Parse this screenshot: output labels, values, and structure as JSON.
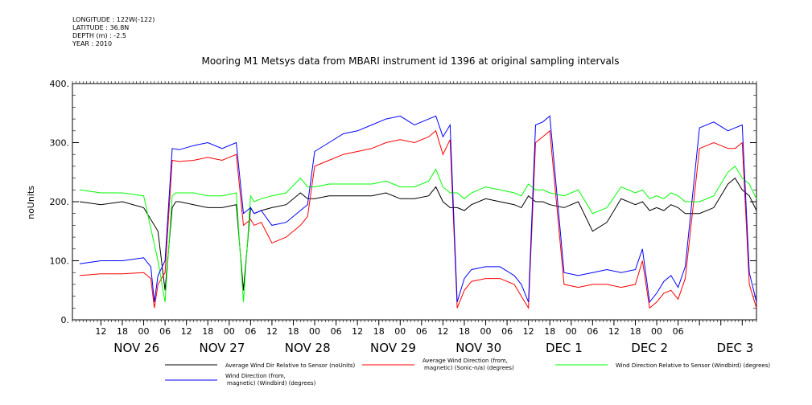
{
  "header": {
    "longitude": "LONGITUDE : 122W(-122)",
    "latitude": "LATITUDE : 36.8N",
    "depth": "DEPTH (m) : -2.5",
    "year": "YEAR : 2010"
  },
  "chart_data": {
    "type": "line",
    "title": "Mooring M1 Metsys data from MBARI instrument id 1396 at original sampling intervals",
    "ylabel": "noUnits",
    "ylim": [
      0,
      400
    ],
    "yticks": [
      "0.",
      "100.",
      "200.",
      "300.",
      "400."
    ],
    "xlim_hours": [
      -20,
      172
    ],
    "hour_tick_labels": [
      "12",
      "18",
      "00",
      "06",
      "12",
      "18",
      "00",
      "06",
      "12",
      "18",
      "00",
      "06",
      "12",
      "18",
      "00",
      "06",
      "12",
      "18",
      "00",
      "06",
      "12",
      "18",
      "00",
      "06",
      "12",
      "18",
      "00",
      "06"
    ],
    "day_labels": [
      "NOV 26",
      "NOV 27",
      "NOV 28",
      "NOV 29",
      "NOV 30",
      "DEC  1",
      "DEC  2",
      "DEC  3"
    ],
    "x_note": "x values are hours since 2010-11-26 00:00",
    "series": [
      {
        "name": "Average Wind Dir Relative to Sensor (noUnits)",
        "color": "#000000",
        "x": [
          -18,
          -12,
          -6,
          0,
          4,
          6,
          8,
          9,
          10,
          14,
          18,
          22,
          26,
          28,
          30,
          31,
          33,
          36,
          40,
          44,
          46,
          48,
          52,
          56,
          60,
          64,
          68,
          72,
          76,
          80,
          82,
          84,
          86,
          88,
          90,
          92,
          96,
          100,
          104,
          106,
          108,
          110,
          112,
          114,
          118,
          122,
          126,
          130,
          134,
          138,
          140,
          142,
          144,
          146,
          148,
          150,
          152,
          156,
          160,
          164,
          166,
          168,
          170,
          172
        ],
        "y": [
          200,
          195,
          200,
          190,
          150,
          50,
          190,
          200,
          200,
          195,
          190,
          190,
          195,
          50,
          190,
          180,
          185,
          190,
          195,
          215,
          205,
          205,
          210,
          210,
          210,
          210,
          215,
          205,
          205,
          210,
          225,
          200,
          190,
          190,
          185,
          195,
          205,
          200,
          195,
          190,
          210,
          200,
          200,
          195,
          190,
          200,
          150,
          165,
          205,
          195,
          200,
          185,
          190,
          185,
          195,
          190,
          180,
          180,
          190,
          230,
          240,
          220,
          210,
          185
        ]
      },
      {
        "name": "Average Wind Direction (from, magnetic) (Sonic-n/a) (degrees)",
        "color": "#ff0000",
        "x": [
          -18,
          -12,
          -6,
          0,
          2,
          3,
          4,
          6,
          8,
          10,
          14,
          18,
          22,
          26,
          28,
          30,
          31,
          33,
          36,
          40,
          44,
          46,
          48,
          52,
          56,
          60,
          64,
          68,
          72,
          76,
          80,
          82,
          84,
          86,
          88,
          90,
          92,
          96,
          100,
          104,
          106,
          108,
          110,
          112,
          114,
          118,
          122,
          126,
          130,
          134,
          138,
          140,
          142,
          144,
          146,
          148,
          150,
          152,
          156,
          160,
          164,
          166,
          168,
          170,
          172
        ],
        "y": [
          75,
          78,
          78,
          80,
          70,
          20,
          60,
          80,
          270,
          268,
          270,
          275,
          270,
          280,
          160,
          170,
          160,
          165,
          130,
          140,
          160,
          175,
          260,
          270,
          280,
          285,
          290,
          300,
          305,
          300,
          310,
          320,
          280,
          305,
          20,
          50,
          65,
          70,
          70,
          60,
          40,
          20,
          300,
          310,
          320,
          60,
          55,
          60,
          60,
          55,
          60,
          100,
          20,
          30,
          45,
          50,
          35,
          70,
          290,
          300,
          290,
          290,
          300,
          60,
          20
        ]
      },
      {
        "name": "Wind Direction Relative to Sensor (Windbird) (degrees)",
        "color": "#00ff00",
        "x": [
          -18,
          -12,
          -6,
          0,
          4,
          6,
          8,
          9,
          10,
          14,
          18,
          22,
          26,
          28,
          30,
          31,
          33,
          36,
          40,
          44,
          46,
          48,
          52,
          56,
          60,
          64,
          68,
          72,
          76,
          80,
          82,
          84,
          86,
          88,
          90,
          92,
          96,
          100,
          104,
          106,
          108,
          110,
          112,
          114,
          118,
          122,
          126,
          130,
          134,
          138,
          140,
          142,
          144,
          146,
          148,
          150,
          152,
          156,
          160,
          164,
          166,
          168,
          170,
          172
        ],
        "y": [
          220,
          215,
          215,
          210,
          100,
          30,
          210,
          215,
          215,
          215,
          210,
          210,
          215,
          30,
          210,
          200,
          205,
          210,
          215,
          240,
          225,
          225,
          230,
          230,
          230,
          230,
          235,
          225,
          225,
          235,
          255,
          225,
          215,
          215,
          205,
          215,
          225,
          220,
          215,
          210,
          230,
          220,
          220,
          215,
          210,
          220,
          180,
          190,
          225,
          215,
          220,
          205,
          210,
          205,
          215,
          210,
          200,
          200,
          210,
          250,
          260,
          240,
          230,
          205
        ]
      },
      {
        "name": "Wind Direction (from, magnetic) (Windbird) (degrees)",
        "color": "#0000ff",
        "x": [
          -18,
          -12,
          -6,
          0,
          2,
          3,
          4,
          6,
          8,
          10,
          14,
          18,
          22,
          26,
          28,
          30,
          31,
          33,
          36,
          40,
          44,
          46,
          48,
          52,
          56,
          60,
          64,
          68,
          72,
          76,
          80,
          82,
          84,
          86,
          88,
          90,
          92,
          96,
          100,
          104,
          106,
          108,
          110,
          112,
          114,
          118,
          122,
          126,
          130,
          134,
          138,
          140,
          142,
          144,
          146,
          148,
          150,
          152,
          156,
          160,
          164,
          166,
          168,
          170,
          172
        ],
        "y": [
          95,
          100,
          100,
          105,
          90,
          30,
          75,
          100,
          290,
          288,
          295,
          300,
          290,
          300,
          180,
          190,
          180,
          185,
          160,
          165,
          185,
          195,
          285,
          300,
          315,
          320,
          330,
          340,
          345,
          330,
          340,
          345,
          310,
          330,
          30,
          70,
          85,
          90,
          90,
          75,
          60,
          30,
          330,
          335,
          345,
          80,
          75,
          80,
          85,
          80,
          85,
          120,
          30,
          45,
          65,
          75,
          55,
          90,
          325,
          335,
          320,
          325,
          330,
          80,
          30
        ]
      }
    ],
    "legend_placement": "bottom",
    "grid": false
  }
}
